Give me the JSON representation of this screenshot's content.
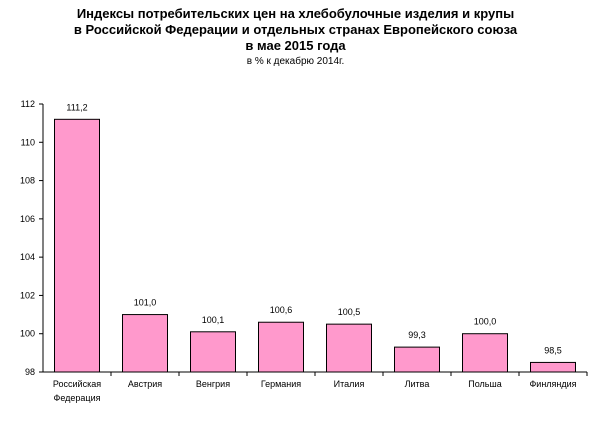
{
  "title_lines": [
    "Индексы потребительских цен на хлебобулочные изделия и крупы",
    "в Российской Федерации и отдельных странах Европейского союза",
    "в мае 2015 года"
  ],
  "subtitle": "в % к декабрю 2014г.",
  "colors": {
    "bar_fill": "#ff99cc",
    "bar_stroke": "#000000",
    "axis": "#000000",
    "background": "#ffffff"
  },
  "chart_data": {
    "type": "bar",
    "title": "Индексы потребительских цен на хлебобулочные изделия и крупы в Российской Федерации и отдельных странах Европейского союза в мае 2015 года",
    "subtitle": "в % к декабрю 2014г.",
    "categories": [
      [
        "Российская",
        "Федерация"
      ],
      [
        "Австрия"
      ],
      [
        "Венгрия"
      ],
      [
        "Германия"
      ],
      [
        "Италия"
      ],
      [
        "Литва"
      ],
      [
        "Польша"
      ],
      [
        "Финляндия"
      ]
    ],
    "values": [
      111.2,
      101.0,
      100.1,
      100.6,
      100.5,
      99.3,
      100.0,
      98.5
    ],
    "value_labels": [
      "111,2",
      "101,0",
      "100,1",
      "100,6",
      "100,5",
      "99,3",
      "100,0",
      "98,5"
    ],
    "ylim": [
      98,
      112
    ],
    "yticks": [
      98,
      100,
      102,
      104,
      106,
      108,
      110,
      112
    ],
    "grid": false,
    "legend": "none"
  }
}
